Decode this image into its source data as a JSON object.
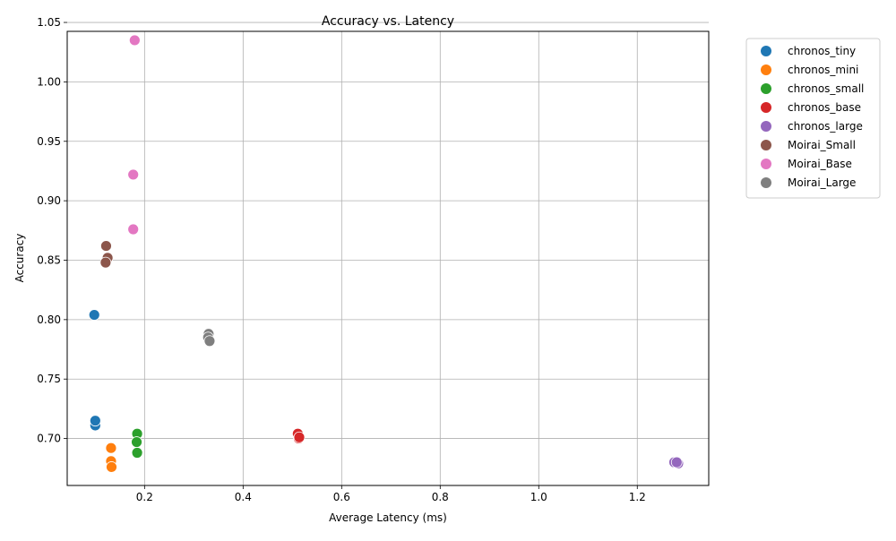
{
  "chart_data": {
    "type": "scatter",
    "title": "Accuracy vs. Latency",
    "xlabel": "Average Latency (ms)",
    "ylabel": "Accuracy",
    "xlim": [
      0.043,
      1.345
    ],
    "ylim": [
      0.6605,
      1.0425
    ],
    "x_ticks": [
      0.2,
      0.4,
      0.6,
      0.8,
      1.0,
      1.2
    ],
    "x_tick_labels": [
      "0.2",
      "0.4",
      "0.6",
      "0.8",
      "1.0",
      "1.2"
    ],
    "y_ticks": [
      0.7,
      0.75,
      0.8,
      0.85,
      0.9,
      0.95,
      1.0
    ],
    "y_tick_labels": [
      "0.70",
      "0.75",
      "0.80",
      "0.85",
      "0.90",
      "0.95",
      "1.00",
      "1.05"
    ],
    "y_tick_values_full": [
      0.7,
      0.75,
      0.8,
      0.85,
      0.9,
      0.95,
      1.0,
      1.05
    ],
    "grid": true,
    "legend_position": "outside-right-top",
    "series": [
      {
        "name": "chronos_tiny",
        "color": "#1f77b4",
        "points": [
          [
            0.098,
            0.804
          ],
          [
            0.1,
            0.711
          ],
          [
            0.1,
            0.715
          ]
        ]
      },
      {
        "name": "chronos_mini",
        "color": "#ff7f0e",
        "points": [
          [
            0.132,
            0.692
          ],
          [
            0.132,
            0.681
          ],
          [
            0.133,
            0.676
          ]
        ]
      },
      {
        "name": "chronos_small",
        "color": "#2ca02c",
        "points": [
          [
            0.185,
            0.704
          ],
          [
            0.184,
            0.697
          ],
          [
            0.185,
            0.688
          ]
        ]
      },
      {
        "name": "chronos_base",
        "color": "#d62728",
        "points": [
          [
            0.511,
            0.704
          ],
          [
            0.513,
            0.7
          ],
          [
            0.514,
            0.701
          ]
        ]
      },
      {
        "name": "chronos_large",
        "color": "#9467bd",
        "points": [
          [
            1.275,
            0.68
          ],
          [
            1.283,
            0.679
          ],
          [
            1.28,
            0.68
          ]
        ]
      },
      {
        "name": "Moirai_Small",
        "color": "#8c564b",
        "points": [
          [
            0.122,
            0.862
          ],
          [
            0.125,
            0.852
          ],
          [
            0.121,
            0.848
          ]
        ]
      },
      {
        "name": "Moirai_Base",
        "color": "#e377c2",
        "points": [
          [
            0.18,
            1.035
          ],
          [
            0.177,
            0.922
          ],
          [
            0.177,
            0.876
          ]
        ]
      },
      {
        "name": "Moirai_Large",
        "color": "#7f7f7f",
        "points": [
          [
            0.33,
            0.788
          ],
          [
            0.329,
            0.785
          ],
          [
            0.332,
            0.782
          ]
        ]
      }
    ]
  }
}
